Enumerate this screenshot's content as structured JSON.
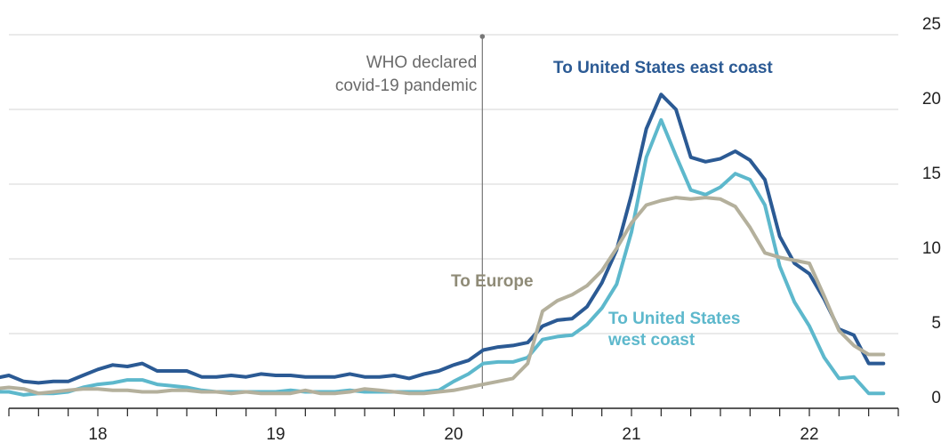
{
  "chart_data": {
    "type": "line",
    "x_axis": {
      "kind": "time",
      "start": "2017-07",
      "end": "2022-07",
      "tick_labels": [
        {
          "label": "18",
          "at": "2018-01"
        },
        {
          "label": "19",
          "at": "2019-01"
        },
        {
          "label": "20",
          "at": "2020-01"
        },
        {
          "label": "21",
          "at": "2021-01"
        },
        {
          "label": "22",
          "at": "2022-01"
        }
      ]
    },
    "y_axis": {
      "ylim": [
        0,
        25
      ],
      "ticks": [
        0,
        5,
        10,
        15,
        20,
        25
      ],
      "tick_labels": [
        "0",
        "5",
        "10",
        "15",
        "20",
        "25"
      ],
      "side": "right",
      "grid": true
    },
    "annotation": {
      "line1": "WHO declared",
      "line2": "covid-19 pandemic",
      "x": "2020-03"
    },
    "series": [
      {
        "name": "To United States east coast",
        "label_lines": [
          "To United States east coast"
        ],
        "color": "#2b5a94",
        "x": [
          "2017-06",
          "2017-07",
          "2017-08",
          "2017-09",
          "2017-10",
          "2017-11",
          "2017-12",
          "2018-01",
          "2018-02",
          "2018-03",
          "2018-04",
          "2018-05",
          "2018-06",
          "2018-07",
          "2018-08",
          "2018-09",
          "2018-10",
          "2018-11",
          "2018-12",
          "2019-01",
          "2019-02",
          "2019-03",
          "2019-04",
          "2019-05",
          "2019-06",
          "2019-07",
          "2019-08",
          "2019-09",
          "2019-10",
          "2019-11",
          "2019-12",
          "2020-01",
          "2020-02",
          "2020-03",
          "2020-04",
          "2020-05",
          "2020-06",
          "2020-07",
          "2020-08",
          "2020-09",
          "2020-10",
          "2020-11",
          "2020-12",
          "2021-01",
          "2021-02",
          "2021-03",
          "2021-04",
          "2021-05",
          "2021-06",
          "2021-07",
          "2021-08",
          "2021-09",
          "2021-10",
          "2021-11",
          "2021-12",
          "2022-01",
          "2022-02",
          "2022-03",
          "2022-04",
          "2022-05",
          "2022-06"
        ],
        "values": [
          2.0,
          2.2,
          1.8,
          1.7,
          1.8,
          1.8,
          2.2,
          2.6,
          2.9,
          2.8,
          3.0,
          2.5,
          2.5,
          2.5,
          2.1,
          2.1,
          2.2,
          2.1,
          2.3,
          2.2,
          2.2,
          2.1,
          2.1,
          2.1,
          2.3,
          2.1,
          2.1,
          2.2,
          2.0,
          2.3,
          2.5,
          2.9,
          3.2,
          3.9,
          4.1,
          4.2,
          4.4,
          5.5,
          5.9,
          6.0,
          6.8,
          8.4,
          10.6,
          14.3,
          18.7,
          21.0,
          20.0,
          16.8,
          16.5,
          16.7,
          17.2,
          16.6,
          15.3,
          11.5,
          9.7,
          9.0,
          7.3,
          5.3,
          4.9,
          3.0,
          3.0
        ],
        "visible_count": 60
      },
      {
        "name": "To United States west coast",
        "label_lines": [
          "To United States",
          "west coast"
        ],
        "color": "#5db8cc",
        "x": [
          "2017-06",
          "2017-07",
          "2017-08",
          "2017-09",
          "2017-10",
          "2017-11",
          "2017-12",
          "2018-01",
          "2018-02",
          "2018-03",
          "2018-04",
          "2018-05",
          "2018-06",
          "2018-07",
          "2018-08",
          "2018-09",
          "2018-10",
          "2018-11",
          "2018-12",
          "2019-01",
          "2019-02",
          "2019-03",
          "2019-04",
          "2019-05",
          "2019-06",
          "2019-07",
          "2019-08",
          "2019-09",
          "2019-10",
          "2019-11",
          "2019-12",
          "2020-01",
          "2020-02",
          "2020-03",
          "2020-04",
          "2020-05",
          "2020-06",
          "2020-07",
          "2020-08",
          "2020-09",
          "2020-10",
          "2020-11",
          "2020-12",
          "2021-01",
          "2021-02",
          "2021-03",
          "2021-04",
          "2021-05",
          "2021-06",
          "2021-07",
          "2021-08",
          "2021-09",
          "2021-10",
          "2021-11",
          "2021-12",
          "2022-01",
          "2022-02",
          "2022-03",
          "2022-04",
          "2022-05",
          "2022-06"
        ],
        "values": [
          1.1,
          1.1,
          0.9,
          1.0,
          1.0,
          1.1,
          1.4,
          1.6,
          1.7,
          1.9,
          1.9,
          1.6,
          1.5,
          1.4,
          1.2,
          1.1,
          1.1,
          1.1,
          1.1,
          1.1,
          1.2,
          1.1,
          1.1,
          1.1,
          1.2,
          1.1,
          1.1,
          1.1,
          1.1,
          1.1,
          1.2,
          1.8,
          2.3,
          3.0,
          3.1,
          3.1,
          3.4,
          4.6,
          4.8,
          4.9,
          5.6,
          6.7,
          8.3,
          11.8,
          16.8,
          19.3,
          16.9,
          14.6,
          14.3,
          14.8,
          15.7,
          15.3,
          13.6,
          9.5,
          7.1,
          5.5,
          3.4,
          2.0,
          2.1,
          1.0,
          1.0
        ],
        "visible_count": 60
      },
      {
        "name": "To Europe",
        "label_lines": [
          "To Europe"
        ],
        "color": "#b4b09c",
        "x": [
          "2017-06",
          "2017-07",
          "2017-08",
          "2017-09",
          "2017-10",
          "2017-11",
          "2017-12",
          "2018-01",
          "2018-02",
          "2018-03",
          "2018-04",
          "2018-05",
          "2018-06",
          "2018-07",
          "2018-08",
          "2018-09",
          "2018-10",
          "2018-11",
          "2018-12",
          "2019-01",
          "2019-02",
          "2019-03",
          "2019-04",
          "2019-05",
          "2019-06",
          "2019-07",
          "2019-08",
          "2019-09",
          "2019-10",
          "2019-11",
          "2019-12",
          "2020-01",
          "2020-02",
          "2020-03",
          "2020-04",
          "2020-05",
          "2020-06",
          "2020-07",
          "2020-08",
          "2020-09",
          "2020-10",
          "2020-11",
          "2020-12",
          "2021-01",
          "2021-02",
          "2021-03",
          "2021-04",
          "2021-05",
          "2021-06",
          "2021-07",
          "2021-08",
          "2021-09",
          "2021-10",
          "2021-11",
          "2021-12",
          "2022-01",
          "2022-02",
          "2022-03",
          "2022-04",
          "2022-05",
          "2022-06"
        ],
        "values": [
          1.3,
          1.4,
          1.3,
          1.0,
          1.1,
          1.2,
          1.3,
          1.3,
          1.2,
          1.2,
          1.1,
          1.1,
          1.2,
          1.2,
          1.1,
          1.1,
          1.0,
          1.1,
          1.0,
          1.0,
          1.0,
          1.2,
          1.0,
          1.0,
          1.1,
          1.3,
          1.2,
          1.1,
          1.0,
          1.0,
          1.1,
          1.2,
          1.4,
          1.6,
          1.8,
          2.0,
          3.0,
          6.5,
          7.2,
          7.6,
          8.2,
          9.2,
          10.7,
          12.4,
          13.6,
          13.9,
          14.1,
          14.0,
          14.1,
          14.0,
          13.5,
          12.1,
          10.4,
          10.1,
          9.9,
          9.7,
          7.5,
          5.2,
          4.2,
          3.6,
          3.6
        ],
        "visible_count": 60
      }
    ],
    "legend": "inline labels",
    "grid": true
  }
}
